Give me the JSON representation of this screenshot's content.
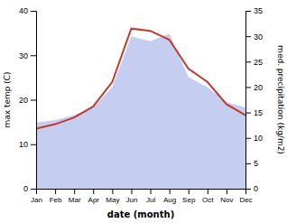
{
  "chart_data": {
    "type": "line",
    "xlabel": "date (month)",
    "ylabel": "max temp (C)",
    "y2label": "med. precipitation (kg/m2)",
    "categories": [
      "Jan",
      "Feb",
      "Mar",
      "Apr",
      "May",
      "Jun",
      "Jul",
      "Aug",
      "Sep",
      "Oct",
      "Nov",
      "Dec"
    ],
    "series": [
      {
        "type": "area",
        "axis": "y2",
        "color": "#c5cdf0",
        "values": [
          13.0,
          13.5,
          14.5,
          16.0,
          20.0,
          30.0,
          29.0,
          30.5,
          22.0,
          20.0,
          17.0,
          16.0
        ]
      },
      {
        "type": "line",
        "color": "#c0392b",
        "values": [
          13.5,
          14.5,
          16.0,
          18.5,
          24.0,
          36.0,
          35.5,
          33.5,
          27.0,
          24.0,
          19.0,
          16.5
        ]
      }
    ],
    "ylim": [
      0,
      40
    ],
    "yticks": [
      0,
      10,
      20,
      30,
      40
    ],
    "y2lim": [
      0,
      35
    ],
    "y2ticks": [
      0,
      5,
      10,
      15,
      20,
      25,
      30,
      35
    ],
    "grid": false
  }
}
